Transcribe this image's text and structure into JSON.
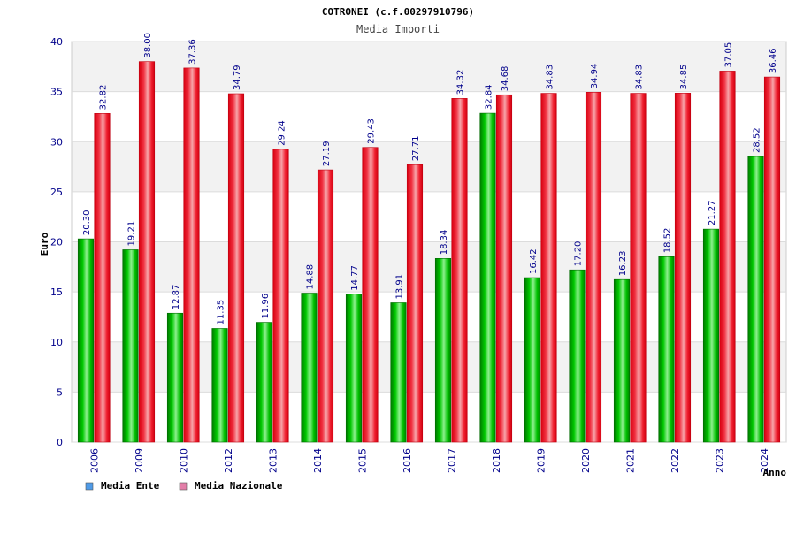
{
  "chart_data": {
    "type": "bar",
    "title": "COTRONEI (c.f.00297910796)",
    "subtitle": "Media Importi",
    "ylabel": "Euro",
    "xlabel": "Anno",
    "ylim": [
      0,
      40
    ],
    "yticks": [
      0,
      5,
      10,
      15,
      20,
      25,
      30,
      35,
      40
    ],
    "grid": true,
    "legend_position": "bottom-left",
    "categories": [
      "2006",
      "2009",
      "2010",
      "2012",
      "2013",
      "2014",
      "2015",
      "2016",
      "2017",
      "2018",
      "2019",
      "2020",
      "2021",
      "2022",
      "2023",
      "2024"
    ],
    "series": [
      {
        "name": "Media Ente",
        "bar_color": "#00b000",
        "legend_color": "#4f9be8",
        "values": [
          20.3,
          19.21,
          12.87,
          11.35,
          11.96,
          14.88,
          14.77,
          13.91,
          18.34,
          32.84,
          16.42,
          17.2,
          16.23,
          18.52,
          21.27,
          28.52
        ],
        "labels": [
          "20.30",
          "19.21",
          "12.87",
          "11.35",
          "11.96",
          "14.88",
          "14.77",
          "13.91",
          "18.34",
          "32.84",
          "16.42",
          "17.20",
          "16.23",
          "18.52",
          "21.27",
          "28.52"
        ]
      },
      {
        "name": "Media Nazionale",
        "bar_color": "#e8101e",
        "legend_color": "#e37ea8",
        "values": [
          32.82,
          38.0,
          37.36,
          34.79,
          29.24,
          27.19,
          29.43,
          27.71,
          34.32,
          34.68,
          34.83,
          34.94,
          34.83,
          34.85,
          37.05,
          36.46
        ],
        "labels": [
          "32.82",
          "38.00",
          "37.36",
          "34.79",
          "29.24",
          "27.19",
          "29.43",
          "27.71",
          "34.32",
          "34.68",
          "34.83",
          "34.94",
          "34.83",
          "34.85",
          "37.05",
          "36.46"
        ]
      }
    ]
  }
}
